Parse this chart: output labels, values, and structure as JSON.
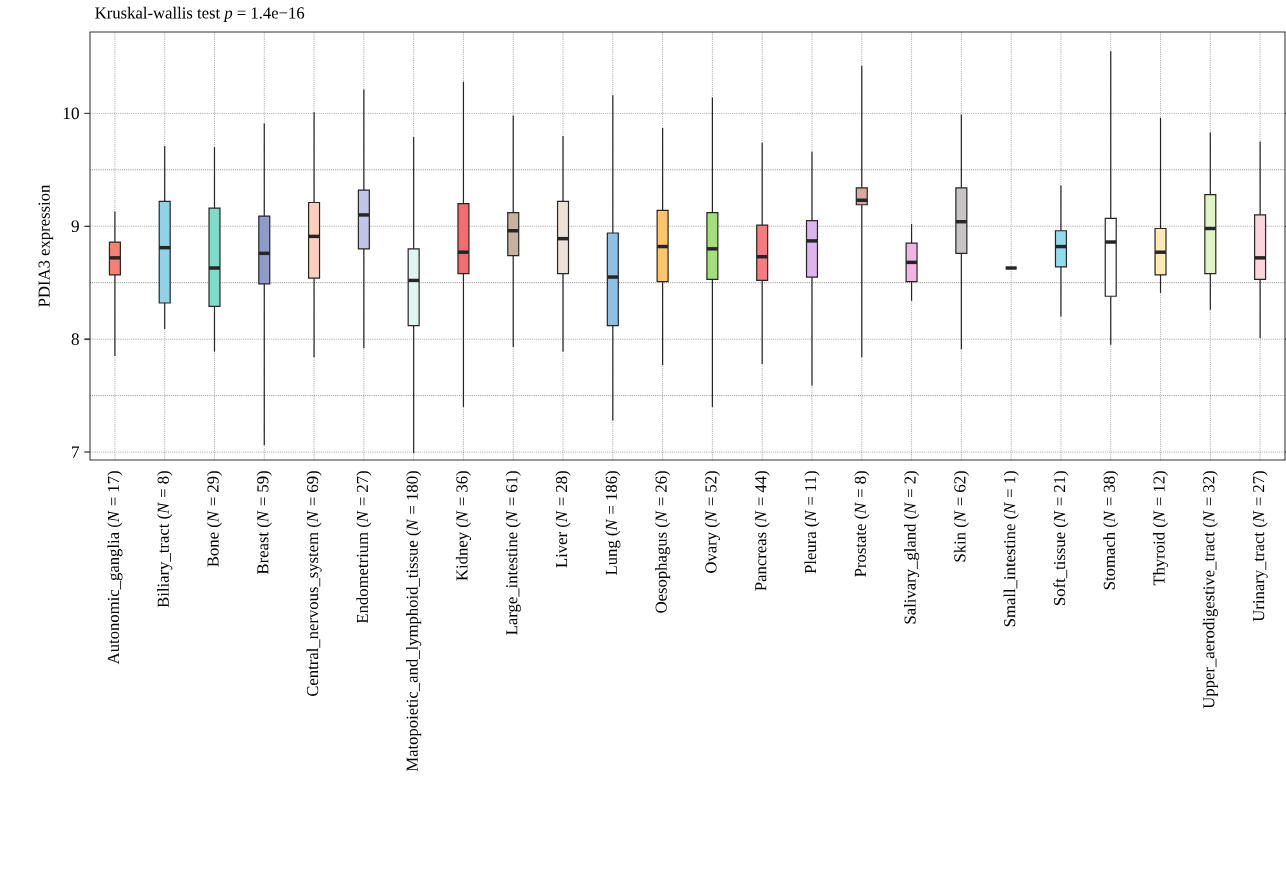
{
  "chart_data": {
    "type": "box",
    "title": "Kruskal-wallis test *p* = 1.4e−16",
    "ylabel": "PDIA3 expression",
    "categories": [
      "Autonomic_ganglia (*N* = 17)",
      "Biliary_tract (*N* = 8)",
      "Bone (*N* = 29)",
      "Breast (*N* = 59)",
      "Central_nervous_system (*N* = 69)",
      "Endometrium (*N* = 27)",
      "Matopoietic_and_lymphoid_tissue (*N* = 180)",
      "Kidney (*N* = 36)",
      "Large_intestine (*N* = 61)",
      "Liver (*N* = 28)",
      "Lung (*N* = 186)",
      "Oesophagus (*N* = 26)",
      "Ovary (*N* = 52)",
      "Pancreas (*N* = 44)",
      "Pleura (*N* = 11)",
      "Prostate (*N* = 8)",
      "Salivary_gland (*N* = 2)",
      "Skin (*N* = 62)",
      "Small_intestine (*N* = 1)",
      "Soft_tissue (*N* = 21)",
      "Stomach (*N* = 38)",
      "Thyroid (*N* = 12)",
      "Upper_aerodigestive_tract (*N* = 32)",
      "Urinary_tract (*N* = 27)"
    ],
    "boxes": [
      {
        "low": 7.85,
        "q1": 8.57,
        "median": 8.72,
        "q3": 8.86,
        "high": 9.13
      },
      {
        "low": 8.09,
        "q1": 8.32,
        "median": 8.81,
        "q3": 9.22,
        "high": 9.71
      },
      {
        "low": 7.89,
        "q1": 8.29,
        "median": 8.63,
        "q3": 9.16,
        "high": 9.7
      },
      {
        "low": 7.06,
        "q1": 8.49,
        "median": 8.76,
        "q3": 9.09,
        "high": 9.91
      },
      {
        "low": 7.84,
        "q1": 8.54,
        "median": 8.91,
        "q3": 9.21,
        "high": 10.01
      },
      {
        "low": 7.92,
        "q1": 8.8,
        "median": 9.1,
        "q3": 9.32,
        "high": 10.21
      },
      {
        "low": 6.99,
        "q1": 8.12,
        "median": 8.52,
        "q3": 8.8,
        "high": 9.79
      },
      {
        "low": 7.4,
        "q1": 8.58,
        "median": 8.77,
        "q3": 9.2,
        "high": 10.28
      },
      {
        "low": 7.93,
        "q1": 8.74,
        "median": 8.96,
        "q3": 9.12,
        "high": 9.98
      },
      {
        "low": 7.89,
        "q1": 8.58,
        "median": 8.89,
        "q3": 9.22,
        "high": 9.8
      },
      {
        "low": 7.28,
        "q1": 8.12,
        "median": 8.55,
        "q3": 8.94,
        "high": 10.16
      },
      {
        "low": 7.77,
        "q1": 8.51,
        "median": 8.82,
        "q3": 9.14,
        "high": 9.87
      },
      {
        "low": 7.4,
        "q1": 8.53,
        "median": 8.8,
        "q3": 9.12,
        "high": 10.14
      },
      {
        "low": 7.78,
        "q1": 8.52,
        "median": 8.73,
        "q3": 9.01,
        "high": 9.74
      },
      {
        "low": 7.59,
        "q1": 8.55,
        "median": 8.87,
        "q3": 9.05,
        "high": 9.66
      },
      {
        "low": 7.84,
        "q1": 9.19,
        "median": 9.23,
        "q3": 9.34,
        "high": 10.42
      },
      {
        "low": 8.34,
        "q1": 8.51,
        "median": 8.68,
        "q3": 8.85,
        "high": 9.02
      },
      {
        "low": 7.91,
        "q1": 8.76,
        "median": 9.04,
        "q3": 9.34,
        "high": 9.99
      },
      {
        "low": 8.63,
        "q1": 8.63,
        "median": 8.63,
        "q3": 8.63,
        "high": 8.63
      },
      {
        "low": 8.2,
        "q1": 8.64,
        "median": 8.82,
        "q3": 8.96,
        "high": 9.36
      },
      {
        "low": 7.95,
        "q1": 8.38,
        "median": 8.86,
        "q3": 9.07,
        "high": 10.55
      },
      {
        "low": 8.41,
        "q1": 8.57,
        "median": 8.77,
        "q3": 8.98,
        "high": 9.96
      },
      {
        "low": 8.26,
        "q1": 8.58,
        "median": 8.98,
        "q3": 9.28,
        "high": 9.83
      },
      {
        "low": 8.01,
        "q1": 8.53,
        "median": 8.72,
        "q3": 9.1,
        "high": 9.75
      }
    ],
    "colors": [
      "#f4806f",
      "#8fd3eb",
      "#7fdcc8",
      "#8f9cc9",
      "#fdd0bd",
      "#c0c5e8",
      "#dff5f2",
      "#f56c6c",
      "#c7b29e",
      "#ece2d5",
      "#8ec0e6",
      "#fec46a",
      "#a2e07a",
      "#f77b7f",
      "#dcb4ee",
      "#d9a8a0",
      "#f4b4e2",
      "#c8c4c4",
      "#333333",
      "#8fdcef",
      "#ffffff",
      "#fde9b4",
      "#e1f5c4",
      "#fbd5dc"
    ],
    "ylim": [
      6.93,
      10.72
    ],
    "yticks": [
      7,
      8,
      9,
      10
    ],
    "grid": true
  }
}
